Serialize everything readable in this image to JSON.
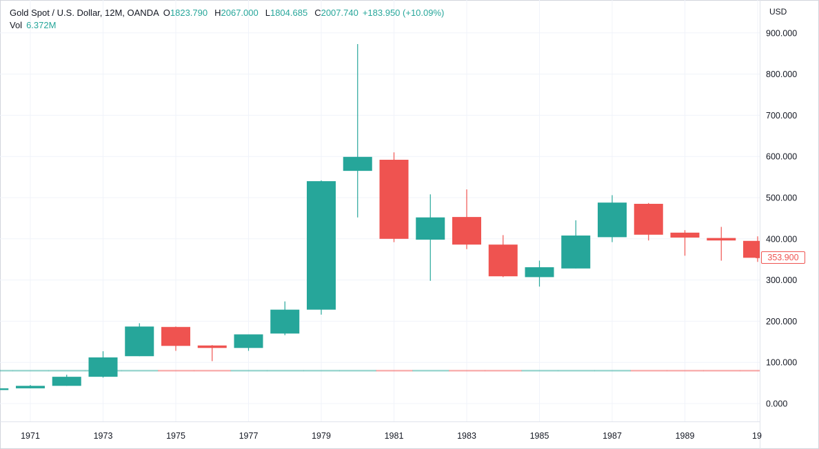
{
  "legend": {
    "symbol": "Gold Spot / U.S. Dollar, 12M, OANDA",
    "o_label": "O",
    "o_value": "1823.790",
    "h_label": "H",
    "h_value": "2067.000",
    "l_label": "L",
    "l_value": "1804.685",
    "c_label": "C",
    "c_value": "2007.740",
    "change": "+183.950 (+10.09%)",
    "vol_label": "Vol",
    "vol_value": "6.372M"
  },
  "currency": "USD",
  "last_price_label": "353.900",
  "colors": {
    "up": "#26a69a",
    "down": "#ef5350",
    "grid": "#f0f3fa",
    "text": "#131722"
  },
  "chart_data": {
    "type": "candlestick",
    "title": "Gold Spot / U.S. Dollar, 12M, OANDA",
    "xlabel": "",
    "ylabel": "USD",
    "ylim": [
      -30,
      940
    ],
    "y_ticks": [
      "0.000",
      "100.000",
      "200.000",
      "300.000",
      "400.000",
      "500.000",
      "600.000",
      "700.000",
      "800.000",
      "900.000"
    ],
    "x_ticks": [
      "1971",
      "1973",
      "1975",
      "1977",
      "1979",
      "1981",
      "1983",
      "1985",
      "1987",
      "1989",
      "19"
    ],
    "candles": [
      {
        "year": 1970,
        "open": 35,
        "high": 39,
        "low": 35,
        "close": 37
      },
      {
        "year": 1971,
        "open": 37,
        "high": 45,
        "low": 37,
        "close": 43
      },
      {
        "year": 1972,
        "open": 43,
        "high": 70,
        "low": 43,
        "close": 65
      },
      {
        "year": 1973,
        "open": 65,
        "high": 127,
        "low": 63,
        "close": 112
      },
      {
        "year": 1974,
        "open": 115,
        "high": 195,
        "low": 115,
        "close": 187
      },
      {
        "year": 1975,
        "open": 186,
        "high": 187,
        "low": 128,
        "close": 140
      },
      {
        "year": 1976,
        "open": 141,
        "high": 142,
        "low": 103,
        "close": 135
      },
      {
        "year": 1977,
        "open": 135,
        "high": 168,
        "low": 128,
        "close": 168
      },
      {
        "year": 1978,
        "open": 170,
        "high": 248,
        "low": 166,
        "close": 228
      },
      {
        "year": 1979,
        "open": 228,
        "high": 542,
        "low": 216,
        "close": 540
      },
      {
        "year": 1980,
        "open": 565,
        "high": 873,
        "low": 452,
        "close": 599
      },
      {
        "year": 1981,
        "open": 592,
        "high": 610,
        "low": 392,
        "close": 400
      },
      {
        "year": 1982,
        "open": 398,
        "high": 508,
        "low": 298,
        "close": 452
      },
      {
        "year": 1983,
        "open": 453,
        "high": 520,
        "low": 375,
        "close": 386
      },
      {
        "year": 1984,
        "open": 386,
        "high": 409,
        "low": 307,
        "close": 309
      },
      {
        "year": 1985,
        "open": 307,
        "high": 347,
        "low": 284,
        "close": 331
      },
      {
        "year": 1986,
        "open": 328,
        "high": 445,
        "low": 328,
        "close": 408
      },
      {
        "year": 1987,
        "open": 404,
        "high": 506,
        "low": 392,
        "close": 488
      },
      {
        "year": 1988,
        "open": 485,
        "high": 487,
        "low": 396,
        "close": 410
      },
      {
        "year": 1989,
        "open": 415,
        "high": 421,
        "low": 359,
        "close": 403
      },
      {
        "year": 1990,
        "open": 402,
        "high": 429,
        "low": 347,
        "close": 396
      },
      {
        "year": 1991,
        "open": 395,
        "high": 406,
        "low": 344,
        "close": 354
      }
    ],
    "volume": [
      {
        "year": 1970,
        "direction": "up"
      },
      {
        "year": 1971,
        "direction": "up"
      },
      {
        "year": 1972,
        "direction": "up"
      },
      {
        "year": 1973,
        "direction": "up"
      },
      {
        "year": 1974,
        "direction": "up"
      },
      {
        "year": 1975,
        "direction": "down"
      },
      {
        "year": 1976,
        "direction": "down"
      },
      {
        "year": 1977,
        "direction": "up"
      },
      {
        "year": 1978,
        "direction": "up"
      },
      {
        "year": 1979,
        "direction": "up"
      },
      {
        "year": 1980,
        "direction": "up"
      },
      {
        "year": 1981,
        "direction": "down"
      },
      {
        "year": 1982,
        "direction": "up"
      },
      {
        "year": 1983,
        "direction": "down"
      },
      {
        "year": 1984,
        "direction": "down"
      },
      {
        "year": 1985,
        "direction": "up"
      },
      {
        "year": 1986,
        "direction": "up"
      },
      {
        "year": 1987,
        "direction": "up"
      },
      {
        "year": 1988,
        "direction": "down"
      },
      {
        "year": 1989,
        "direction": "down"
      },
      {
        "year": 1990,
        "direction": "down"
      },
      {
        "year": 1991,
        "direction": "down"
      }
    ],
    "grid": true
  }
}
